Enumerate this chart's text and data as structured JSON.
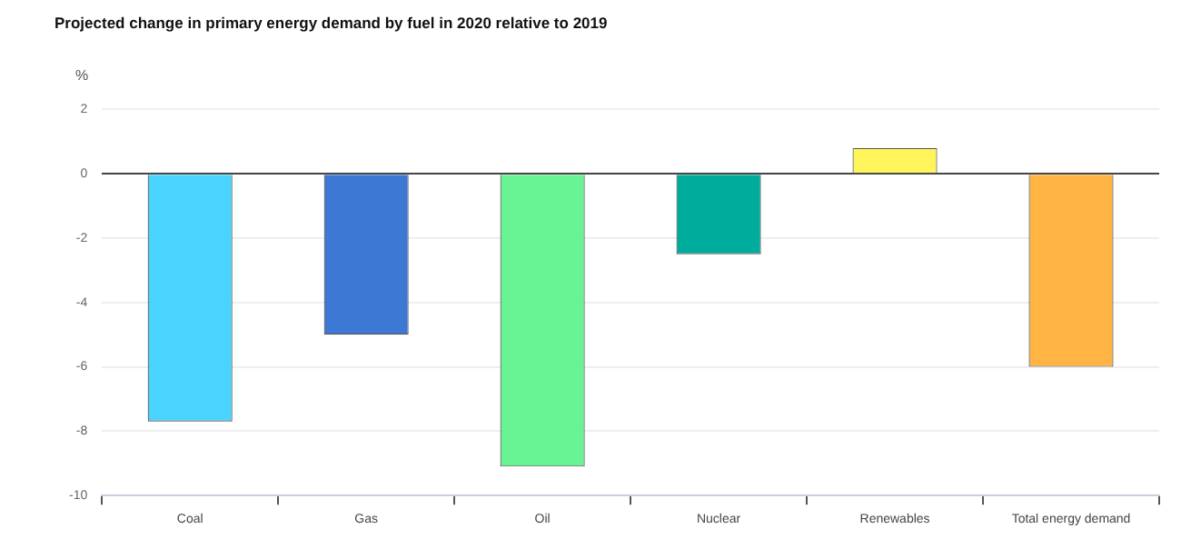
{
  "chart_data": {
    "type": "bar",
    "title": "Projected change in primary energy demand by fuel in 2020 relative to 2019",
    "ylabel": "%",
    "categories": [
      "Coal",
      "Gas",
      "Oil",
      "Nuclear",
      "Renewables",
      "Total energy demand"
    ],
    "values": [
      -7.7,
      -5,
      -9.1,
      -2.5,
      0.8,
      -6
    ],
    "colors": [
      "#48d4ff",
      "#3c78d4",
      "#68f494",
      "#00ac9c",
      "#fff45c",
      "#ffb444"
    ],
    "ylim": [
      -10,
      2
    ],
    "yticks": [
      -10,
      -8,
      -6,
      -4,
      -2,
      0,
      2
    ],
    "grid": "y"
  }
}
